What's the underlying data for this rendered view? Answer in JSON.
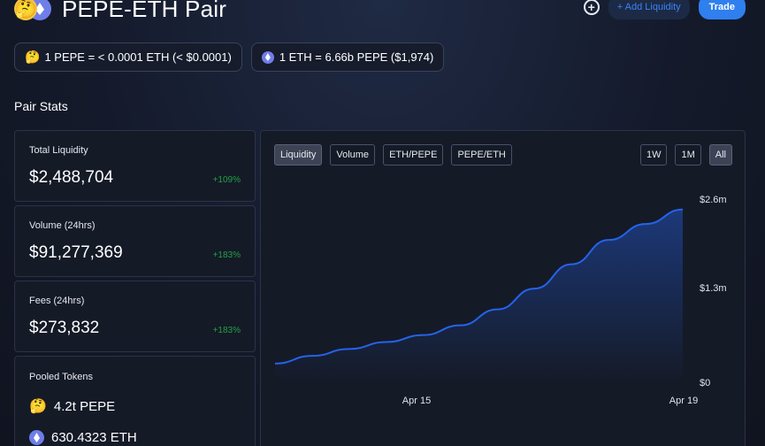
{
  "header": {
    "title": "PEPE-ETH Pair",
    "add_liquidity_label": "+ Add Liquidity",
    "trade_label": "Trade"
  },
  "rates": [
    {
      "text": "1 PEPE = < 0.0001 ETH (< $0.0001)",
      "icon": "pepe-emoji"
    },
    {
      "text": "1 ETH = 6.66b PEPE ($1,974)",
      "icon": "eth-icon"
    }
  ],
  "section_title": "Pair Stats",
  "stats": [
    {
      "label": "Total Liquidity",
      "value": "$2,488,704",
      "change": "+109%"
    },
    {
      "label": "Volume (24hrs)",
      "value": "$91,277,369",
      "change": "+183%"
    },
    {
      "label": "Fees (24hrs)",
      "value": "$273,832",
      "change": "+183%"
    }
  ],
  "pooled": {
    "label": "Pooled Tokens",
    "tokens": [
      {
        "amount": "4.2t PEPE",
        "icon": "pepe-emoji"
      },
      {
        "amount": "630.4323 ETH",
        "icon": "eth-icon"
      }
    ]
  },
  "chart_tabs": [
    "Liquidity",
    "Volume",
    "ETH/PEPE",
    "PEPE/ETH"
  ],
  "chart_ranges": [
    "1W",
    "1M",
    "All"
  ],
  "active_tab": "Liquidity",
  "active_range": "All",
  "colors": {
    "accent": "#2f7fef",
    "positive": "#22a146",
    "line": "#2563eb"
  },
  "chart_data": {
    "type": "area",
    "x_tick_labels": [
      "Apr 15",
      "Apr 19"
    ],
    "y_tick_labels": [
      "$0",
      "$1.3m",
      "$2.6m"
    ],
    "ylim": [
      0,
      2600000
    ],
    "series": [
      {
        "values": [
          270000,
          380000,
          480000,
          580000,
          680000,
          820000,
          1050000,
          1350000,
          1700000,
          2050000,
          2280000,
          2488704
        ]
      }
    ]
  }
}
